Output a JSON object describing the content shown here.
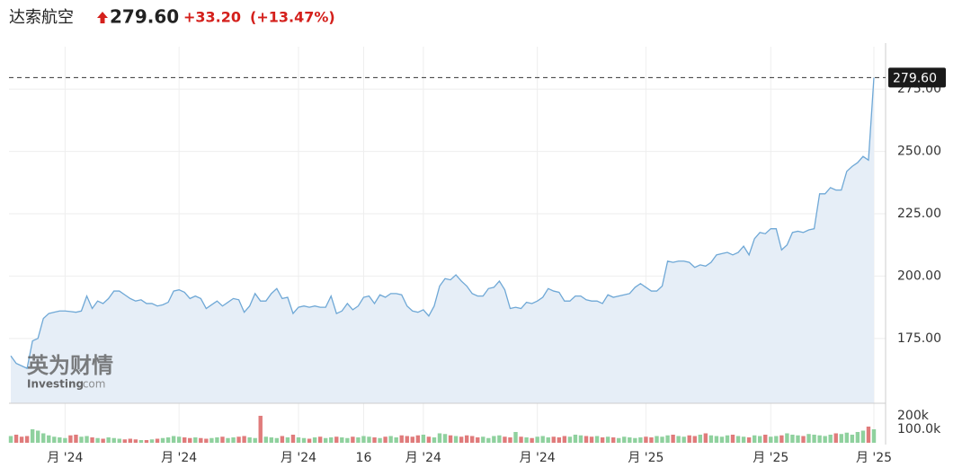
{
  "quote": {
    "name": "达索航空",
    "price": "279.60",
    "change": "+33.20",
    "change_pct": "(+13.47%)",
    "color": "#d4201c"
  },
  "watermark": {
    "cn": "英为财情",
    "en": "Investing",
    "domain": ".com"
  },
  "chart_data": [
    {
      "type": "area",
      "color": "#6fa8d6",
      "fill": "#e6eef7",
      "ylim": [
        149,
        292
      ],
      "yticks": [
        {
          "value": 175,
          "label": "175.00"
        },
        {
          "value": 200,
          "label": "200.00"
        },
        {
          "value": 225,
          "label": "225.00"
        },
        {
          "value": 250,
          "label": "250.00"
        },
        {
          "value": 275,
          "label": "275.00"
        }
      ],
      "xticks": [
        {
          "value": 10,
          "label": "月 '24"
        },
        {
          "value": 31,
          "label": "月 '24"
        },
        {
          "value": 53,
          "label": "月 '24"
        },
        {
          "value": 65,
          "label": "16"
        },
        {
          "value": 76,
          "label": "月 '24"
        },
        {
          "value": 97,
          "label": "月 '24"
        },
        {
          "value": 117,
          "label": "月 '25"
        },
        {
          "value": 140,
          "label": "月 '25"
        },
        {
          "value": 159,
          "label": "月 '25"
        }
      ],
      "grid": true,
      "values": [
        168,
        165,
        164,
        163,
        174,
        175,
        183,
        185,
        185.5,
        186,
        186,
        185.8,
        185.5,
        186,
        192,
        187,
        190,
        189,
        191,
        194,
        194,
        192.5,
        191,
        190,
        190.5,
        189,
        189,
        188,
        188.5,
        189.5,
        194,
        194.5,
        193.5,
        191,
        192,
        191,
        187,
        188.5,
        190,
        188,
        189.5,
        191,
        190.5,
        185.5,
        188,
        193,
        190,
        190,
        193,
        195,
        191,
        191.5,
        185,
        187.5,
        188,
        187.5,
        188,
        187.5,
        187.5,
        192,
        185,
        186,
        189,
        186.5,
        188,
        191.5,
        192,
        189,
        192.5,
        191.5,
        193,
        193,
        192.5,
        188,
        186,
        185.5,
        186.5,
        184,
        188,
        196,
        199,
        198.5,
        200.5,
        198,
        196,
        193,
        192,
        192,
        195,
        195.5,
        198,
        194.5,
        187,
        187.5,
        187,
        189.5,
        189,
        190,
        191.5,
        195,
        194,
        193.5,
        190,
        190,
        192,
        192,
        190.5,
        190,
        190,
        189,
        192.5,
        191.5,
        192,
        192.5,
        193,
        195.5,
        197,
        195.5,
        194,
        194,
        196,
        206,
        205.5,
        206,
        206,
        205.5,
        203.5,
        204.5,
        204,
        205.5,
        208.5,
        209,
        209.5,
        208.5,
        209.5,
        212,
        208.5,
        215,
        217.5,
        217,
        219,
        219,
        210.5,
        212.5,
        217.5,
        218,
        217.5,
        218.5,
        219,
        233,
        233,
        235.5,
        234.5,
        234.5,
        242,
        244,
        245.5,
        248,
        246.5,
        279.6
      ]
    },
    {
      "type": "bar",
      "up_color": "#8fd19e",
      "down_color": "#e07b7b",
      "ylim": [
        0,
        273000
      ],
      "yticks": [
        {
          "value": 200000,
          "label": "200k"
        },
        {
          "value": 100000,
          "label": "100.0k"
        }
      ],
      "values": [
        50000,
        60000,
        45000,
        50000,
        100000,
        90000,
        70000,
        55000,
        45000,
        40000,
        35000,
        55000,
        60000,
        45000,
        50000,
        40000,
        35000,
        30000,
        40000,
        35000,
        30000,
        25000,
        30000,
        25000,
        20000,
        20000,
        25000,
        30000,
        35000,
        40000,
        50000,
        45000,
        40000,
        35000,
        40000,
        35000,
        30000,
        35000,
        40000,
        45000,
        35000,
        40000,
        45000,
        50000,
        40000,
        35000,
        200000,
        45000,
        40000,
        35000,
        50000,
        40000,
        60000,
        40000,
        35000,
        30000,
        40000,
        45000,
        35000,
        40000,
        45000,
        40000,
        35000,
        45000,
        40000,
        50000,
        45000,
        40000,
        35000,
        45000,
        50000,
        40000,
        55000,
        50000,
        45000,
        55000,
        60000,
        45000,
        40000,
        70000,
        65000,
        55000,
        50000,
        45000,
        55000,
        50000,
        40000,
        45000,
        35000,
        50000,
        55000,
        45000,
        40000,
        80000,
        45000,
        40000,
        35000,
        45000,
        50000,
        40000,
        45000,
        40000,
        50000,
        45000,
        60000,
        55000,
        50000,
        45000,
        50000,
        40000,
        45000,
        40000,
        35000,
        45000,
        40000,
        35000,
        40000,
        45000,
        40000,
        50000,
        45000,
        55000,
        60000,
        50000,
        45000,
        55000,
        50000,
        60000,
        70000,
        55000,
        50000,
        45000,
        55000,
        60000,
        50000,
        45000,
        40000,
        55000,
        50000,
        60000,
        45000,
        50000,
        55000,
        70000,
        60000,
        55000,
        50000,
        65000,
        60000,
        55000,
        50000,
        60000,
        70000,
        65000,
        75000,
        60000,
        80000,
        90000,
        120000,
        100000
      ]
    }
  ]
}
